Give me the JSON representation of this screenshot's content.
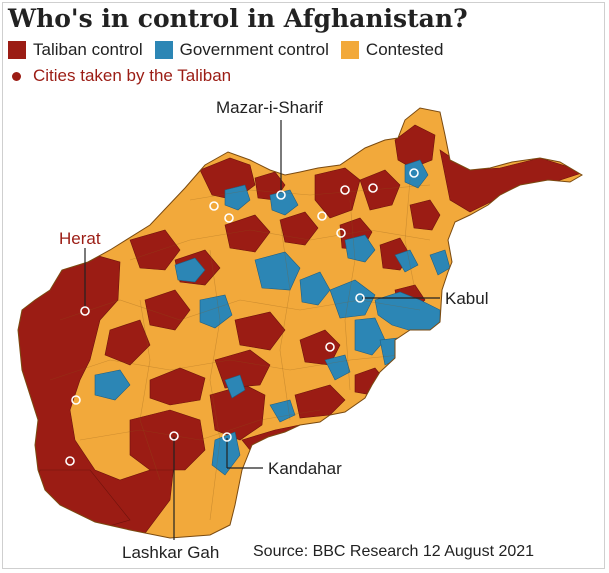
{
  "title": "Who's in control in Afghanistan?",
  "legend": {
    "taliban": {
      "label": "Taliban control",
      "color": "#9b1c14"
    },
    "government": {
      "label": "Government control",
      "color": "#2c86b5"
    },
    "contested": {
      "label": "Contested",
      "color": "#f2a93b"
    },
    "cities": {
      "label": "Cities taken by the Taliban",
      "color": "#9b1c14"
    }
  },
  "cities": {
    "mazar": "Mazar-i-Sharif",
    "herat": "Herat",
    "kabul": "Kabul",
    "kandahar": "Kandahar",
    "lashkar": "Lashkar Gah"
  },
  "source": "Source: BBC Research 12 August 2021"
}
